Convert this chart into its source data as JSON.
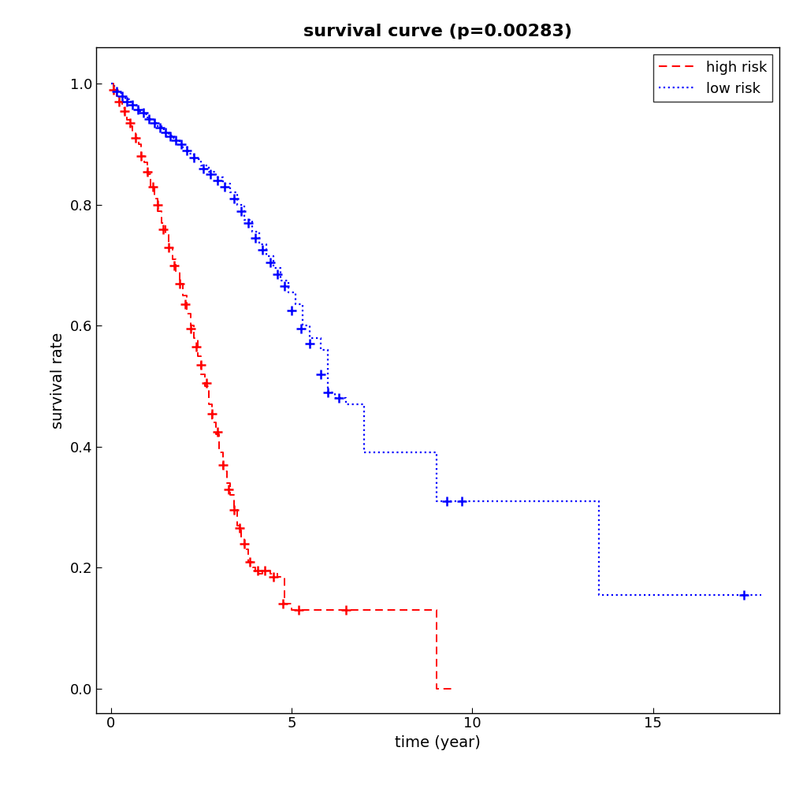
{
  "title": "survival curve (p=0.00283)",
  "xlabel": "time (year)",
  "ylabel": "survival rate",
  "xlim": [
    -0.4,
    18.5
  ],
  "ylim": [
    -0.04,
    1.06
  ],
  "xticks": [
    0,
    5,
    10,
    15
  ],
  "yticks": [
    0.0,
    0.2,
    0.4,
    0.6,
    0.8,
    1.0
  ],
  "high_risk_color": "#FF0000",
  "low_risk_color": "#0000FF",
  "high_risk_color_hex": "red",
  "low_risk_color_hex": "blue",
  "high_risk_times": [
    0.0,
    0.08,
    0.15,
    0.22,
    0.3,
    0.38,
    0.45,
    0.52,
    0.6,
    0.68,
    0.76,
    0.84,
    0.92,
    1.0,
    1.1,
    1.2,
    1.3,
    1.4,
    1.5,
    1.6,
    1.7,
    1.8,
    1.9,
    2.0,
    2.1,
    2.2,
    2.3,
    2.4,
    2.5,
    2.6,
    2.7,
    2.8,
    2.9,
    3.0,
    3.1,
    3.2,
    3.3,
    3.4,
    3.5,
    3.6,
    3.7,
    3.8,
    3.9,
    4.0,
    4.2,
    4.4,
    4.6,
    4.8,
    5.0,
    5.2,
    5.4,
    5.6,
    5.8,
    6.0,
    6.5,
    7.0,
    7.5,
    8.0,
    8.5,
    9.0,
    9.5
  ],
  "high_risk_surv": [
    1.0,
    0.99,
    0.98,
    0.97,
    0.96,
    0.95,
    0.94,
    0.93,
    0.92,
    0.91,
    0.9,
    0.88,
    0.87,
    0.85,
    0.83,
    0.81,
    0.79,
    0.77,
    0.75,
    0.73,
    0.71,
    0.69,
    0.67,
    0.65,
    0.62,
    0.6,
    0.58,
    0.55,
    0.52,
    0.5,
    0.47,
    0.44,
    0.42,
    0.39,
    0.36,
    0.34,
    0.32,
    0.3,
    0.27,
    0.25,
    0.23,
    0.21,
    0.2,
    0.19,
    0.195,
    0.19,
    0.185,
    0.14,
    0.13,
    0.13,
    0.13,
    0.13,
    0.13,
    0.13,
    0.13,
    0.13,
    0.13,
    0.13,
    0.13,
    0.0,
    0.0
  ],
  "high_risk_censors_x": [
    0.08,
    0.22,
    0.38,
    0.52,
    0.68,
    0.84,
    1.0,
    1.15,
    1.3,
    1.45,
    1.6,
    1.75,
    1.9,
    2.05,
    2.2,
    2.35,
    2.5,
    2.65,
    2.8,
    2.95,
    3.1,
    3.25,
    3.4,
    3.55,
    3.7,
    3.85,
    4.05,
    4.25,
    4.5,
    4.75,
    5.2,
    6.5
  ],
  "high_risk_censors_y": [
    0.99,
    0.97,
    0.955,
    0.935,
    0.91,
    0.88,
    0.855,
    0.83,
    0.8,
    0.76,
    0.73,
    0.7,
    0.67,
    0.635,
    0.595,
    0.565,
    0.535,
    0.505,
    0.455,
    0.425,
    0.37,
    0.33,
    0.295,
    0.265,
    0.24,
    0.21,
    0.195,
    0.195,
    0.185,
    0.14,
    0.13,
    0.13
  ],
  "low_risk_times": [
    0.0,
    0.1,
    0.2,
    0.3,
    0.4,
    0.5,
    0.6,
    0.7,
    0.8,
    0.9,
    1.0,
    1.1,
    1.2,
    1.3,
    1.4,
    1.5,
    1.6,
    1.7,
    1.8,
    1.9,
    2.0,
    2.15,
    2.3,
    2.5,
    2.7,
    2.9,
    3.1,
    3.3,
    3.5,
    3.7,
    3.9,
    4.1,
    4.3,
    4.5,
    4.7,
    4.9,
    5.1,
    5.3,
    5.5,
    5.8,
    6.0,
    6.2,
    6.5,
    7.0,
    7.5,
    8.0,
    8.5,
    9.0,
    9.5,
    10.0,
    13.0,
    13.5,
    17.5,
    18.0
  ],
  "low_risk_surv": [
    1.0,
    0.99,
    0.985,
    0.98,
    0.975,
    0.97,
    0.965,
    0.96,
    0.955,
    0.95,
    0.945,
    0.94,
    0.935,
    0.93,
    0.925,
    0.92,
    0.915,
    0.91,
    0.905,
    0.9,
    0.895,
    0.885,
    0.875,
    0.865,
    0.855,
    0.845,
    0.835,
    0.82,
    0.8,
    0.775,
    0.755,
    0.735,
    0.715,
    0.695,
    0.675,
    0.655,
    0.635,
    0.6,
    0.58,
    0.56,
    0.49,
    0.48,
    0.47,
    0.39,
    0.39,
    0.39,
    0.39,
    0.31,
    0.31,
    0.31,
    0.31,
    0.155,
    0.155,
    0.155
  ],
  "low_risk_censors_x": [
    0.15,
    0.3,
    0.45,
    0.6,
    0.75,
    0.9,
    1.05,
    1.2,
    1.35,
    1.5,
    1.65,
    1.8,
    1.95,
    2.1,
    2.3,
    2.55,
    2.75,
    2.95,
    3.15,
    3.4,
    3.6,
    3.8,
    4.0,
    4.2,
    4.4,
    4.6,
    4.8,
    5.0,
    5.25,
    5.5,
    5.8,
    6.0,
    6.3,
    9.3,
    9.7,
    17.5
  ],
  "low_risk_censors_y": [
    0.988,
    0.98,
    0.97,
    0.965,
    0.958,
    0.952,
    0.942,
    0.935,
    0.928,
    0.92,
    0.913,
    0.907,
    0.9,
    0.89,
    0.878,
    0.86,
    0.85,
    0.84,
    0.83,
    0.81,
    0.79,
    0.77,
    0.745,
    0.725,
    0.705,
    0.685,
    0.665,
    0.625,
    0.595,
    0.57,
    0.52,
    0.49,
    0.48,
    0.31,
    0.31,
    0.155
  ],
  "figsize": [
    10.2,
    10.05
  ],
  "dpi": 100,
  "title_fontsize": 16,
  "label_fontsize": 14,
  "tick_fontsize": 13,
  "legend_fontsize": 13
}
